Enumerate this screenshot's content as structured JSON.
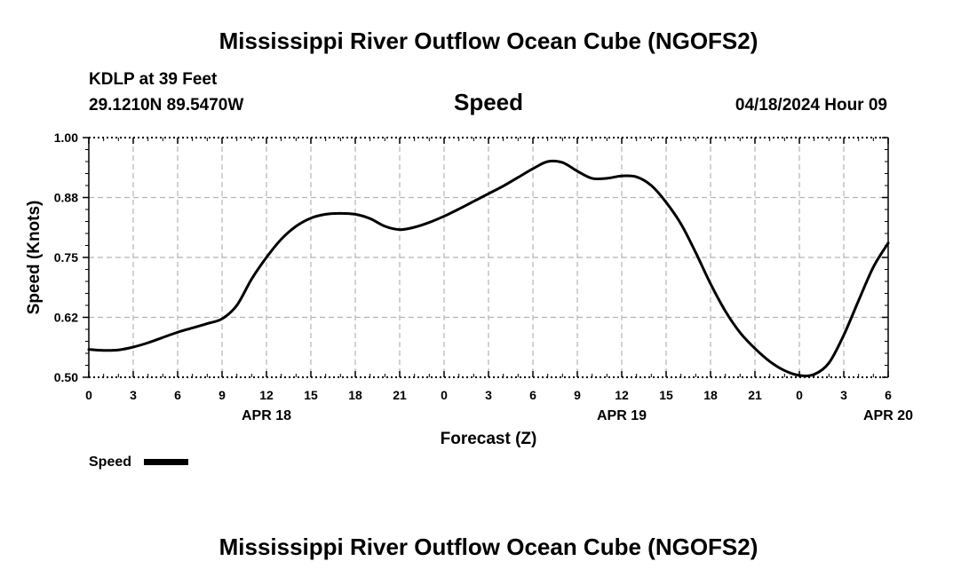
{
  "header": {
    "title": "Mississippi River Outflow Ocean Cube (NGOFS2)",
    "station": "KDLP at 39 Feet",
    "coords": "29.1210N  89.5470W",
    "datetime": "04/18/2024 Hour 09"
  },
  "footer": {
    "title": "Mississippi River Outflow Ocean Cube (NGOFS2)"
  },
  "chart_data": {
    "type": "line",
    "title": "Speed",
    "xlabel": "Forecast (Z)",
    "ylabel": "Speed (Knots)",
    "x_hours_range": [
      0,
      54
    ],
    "ylim": [
      0.5,
      1.0
    ],
    "y_ticks": [
      "0.50",
      "0.62",
      "0.75",
      "0.88",
      "1.00"
    ],
    "x_ticks": [
      "0",
      "3",
      "6",
      "9",
      "12",
      "15",
      "18",
      "21",
      "0",
      "3",
      "6",
      "9",
      "12",
      "15",
      "18",
      "21",
      "0",
      "3",
      "6"
    ],
    "date_labels": [
      "APR 18",
      "APR 19",
      "APR 20"
    ],
    "grid": true,
    "legend": "bottom-left",
    "color": "#000000",
    "series": [
      {
        "name": "Speed",
        "x": [
          0,
          1,
          2,
          3,
          4,
          5,
          6,
          7,
          8,
          9,
          10,
          11,
          12,
          13,
          14,
          15,
          16,
          17,
          18,
          19,
          20,
          21,
          22,
          23,
          24,
          25,
          26,
          27,
          28,
          29,
          30,
          31,
          32,
          33,
          34,
          35,
          36,
          37,
          38,
          39,
          40,
          41,
          42,
          43,
          44,
          45,
          46,
          47,
          48,
          49,
          50,
          51,
          52,
          53,
          54
        ],
        "values": [
          0.558,
          0.556,
          0.557,
          0.563,
          0.572,
          0.583,
          0.594,
          0.603,
          0.612,
          0.622,
          0.65,
          0.705,
          0.75,
          0.788,
          0.815,
          0.832,
          0.84,
          0.842,
          0.84,
          0.831,
          0.815,
          0.808,
          0.813,
          0.823,
          0.836,
          0.851,
          0.867,
          0.883,
          0.899,
          0.917,
          0.935,
          0.95,
          0.948,
          0.93,
          0.915,
          0.915,
          0.92,
          0.918,
          0.9,
          0.865,
          0.82,
          0.76,
          0.695,
          0.638,
          0.593,
          0.56,
          0.533,
          0.514,
          0.504,
          0.506,
          0.53,
          0.588,
          0.66,
          0.73,
          0.78
        ]
      }
    ]
  }
}
